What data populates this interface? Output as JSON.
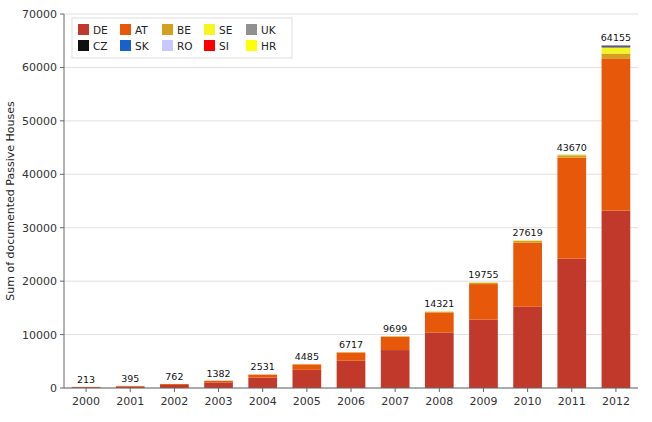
{
  "chart_data": {
    "type": "bar",
    "stacked": true,
    "y_label": "Sum of documented Passive Houses",
    "categories": [
      "2000",
      "2001",
      "2002",
      "2003",
      "2004",
      "2005",
      "2006",
      "2007",
      "2008",
      "2009",
      "2010",
      "2011",
      "2012"
    ],
    "series": [
      {
        "name": "DE",
        "color": "#c0392b",
        "values": [
          150,
          280,
          570,
          1050,
          1950,
          3400,
          5100,
          7100,
          10400,
          12800,
          15200,
          24200,
          33200
        ]
      },
      {
        "name": "AT",
        "color": "#e8580a",
        "values": [
          55,
          105,
          175,
          305,
          545,
          1010,
          1530,
          2480,
          3740,
          6650,
          12000,
          18900,
          28500
        ]
      },
      {
        "name": "BE",
        "color": "#d4a020",
        "values": [
          5,
          6,
          10,
          20,
          28,
          55,
          72,
          95,
          130,
          250,
          320,
          460,
          900
        ]
      },
      {
        "name": "SE",
        "color": "#f5f520",
        "values": [
          2,
          3,
          5,
          5,
          6,
          15,
          10,
          18,
          40,
          45,
          75,
          80,
          1050
        ]
      },
      {
        "name": "UK",
        "color": "#909090",
        "values": [
          1,
          1,
          1,
          1,
          1,
          3,
          3,
          3,
          5,
          5,
          15,
          15,
          250
        ]
      },
      {
        "name": "CZ",
        "color": "#101010",
        "values": [
          0,
          0,
          1,
          1,
          1,
          1,
          1,
          1,
          3,
          3,
          6,
          8,
          150
        ]
      },
      {
        "name": "SK",
        "color": "#1a5fcc",
        "values": [
          0,
          0,
          0,
          0,
          0,
          1,
          1,
          1,
          2,
          1,
          2,
          5,
          50
        ]
      },
      {
        "name": "RO",
        "color": "#c8c8ff",
        "values": [
          0,
          0,
          0,
          0,
          0,
          0,
          0,
          0,
          0,
          0,
          0,
          0,
          25
        ]
      },
      {
        "name": "SI",
        "color": "#ff0000",
        "values": [
          0,
          0,
          0,
          0,
          0,
          0,
          0,
          1,
          1,
          1,
          1,
          2,
          30
        ]
      },
      {
        "name": "HR",
        "color": "#ffff00",
        "values": [
          0,
          0,
          0,
          0,
          0,
          0,
          0,
          0,
          0,
          0,
          0,
          0,
          0
        ]
      }
    ],
    "totals": [
      213,
      395,
      762,
      1382,
      2531,
      4485,
      6717,
      9699,
      14321,
      19755,
      27619,
      43670,
      64155
    ],
    "ylim": [
      0,
      70000
    ],
    "yticks": [
      0,
      10000,
      20000,
      30000,
      40000,
      50000,
      60000,
      70000
    ],
    "grid": true,
    "legend": "upper left"
  }
}
